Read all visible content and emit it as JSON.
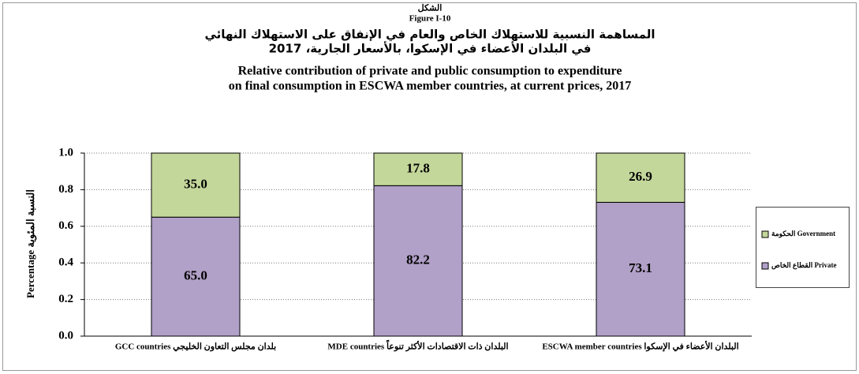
{
  "chart_data": {
    "type": "stacked_bar",
    "figure_label_ar": "الشكل",
    "figure_label_en": "Figure I-10",
    "title_ar": [
      "المساهمة النسبية للاستهلاك الخاص والعام في الإنفاق على الاستهلاك النهائي",
      "في البلدان الأعضاء في الإسكوا، بالأسعار الجارية، 2017"
    ],
    "title_en": [
      "Relative contribution of private and public consumption to expenditure",
      "on final consumption in ESCWA member countries, at current prices, 2017"
    ],
    "y_label": "Percentage النسبة المئوية",
    "categories": [
      "GCC countries بلدان مجلس التعاون الخليجي",
      "MDE countries البلدان ذات الاقتصادات الأكثر تنوعاً",
      "ESCWA member countries البلدان الأعضاء في الإسكوا"
    ],
    "series": [
      {
        "name": "القطاع الخاص Private",
        "color": "#b1a0c7",
        "values": [
          0.65,
          0.822,
          0.731
        ],
        "value_labels": [
          "65.0",
          "82.2",
          "73.1"
        ]
      },
      {
        "name": "الحكومة Government",
        "color": "#c4d79b",
        "values": [
          0.35,
          0.178,
          0.269
        ],
        "value_labels": [
          "35.0",
          "17.8",
          "26.9"
        ]
      }
    ],
    "ylim": [
      0,
      1
    ],
    "yticks": [
      {
        "value": 0,
        "label": "0.0"
      },
      0.2,
      0.4,
      0.6,
      0.8,
      {
        "value": 1,
        "label": "1.0"
      }
    ],
    "grid": true,
    "legend": "right"
  }
}
